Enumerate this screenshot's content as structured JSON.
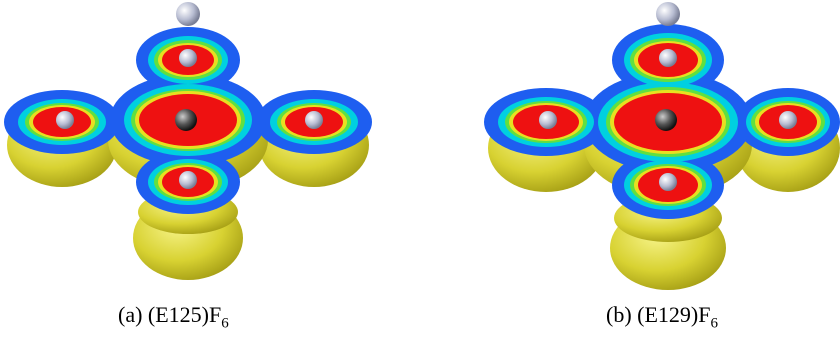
{
  "figure": {
    "panels": [
      {
        "id": "a",
        "label": "(a)",
        "formula": "(E125)F",
        "subscript": "6",
        "render": "ELF isosurface + colored slice, 1 central atom + 5 satellite atoms"
      },
      {
        "id": "b",
        "label": "(b)",
        "formula": "(E129)F",
        "subscript": "6",
        "render": "ELF isosurface + colored slice, 1 central atom + 5 satellite atoms"
      }
    ],
    "colors": {
      "isosurface": "#d8d232",
      "slice_outer": "#1e5ef0",
      "slice_mid": "#00d0e0",
      "slice_green": "#60e040",
      "slice_yellow": "#e8e020",
      "slice_core": "#ee1111",
      "atom_light": "#c8ccdd",
      "atom_dark": "#333333"
    }
  }
}
